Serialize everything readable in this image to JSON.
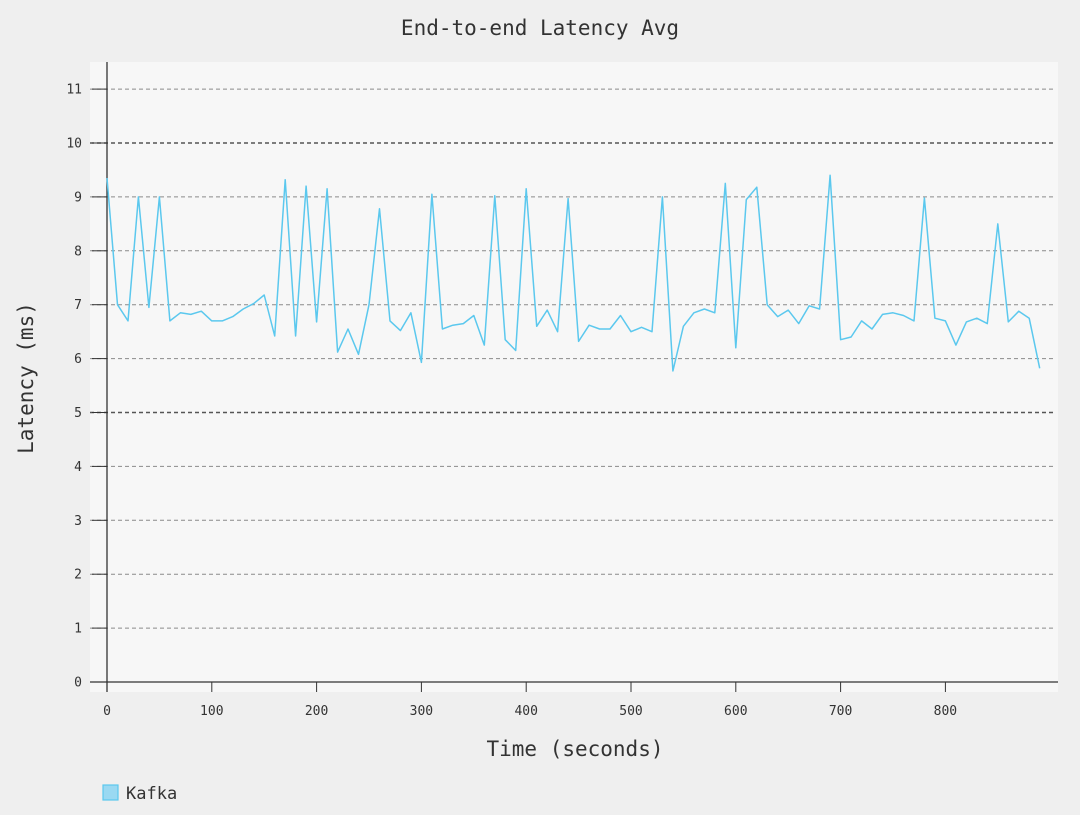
{
  "chart_data": {
    "type": "line",
    "title": "End-to-end Latency Avg",
    "xlabel": "Time (seconds)",
    "ylabel": "Latency (ms)",
    "xlim": [
      0,
      910
    ],
    "ylim": [
      0,
      11.5
    ],
    "x_ticks": [
      0,
      100,
      200,
      300,
      400,
      500,
      600,
      700,
      800
    ],
    "y_ticks": [
      0,
      1,
      2,
      3,
      4,
      5,
      6,
      7,
      8,
      9,
      10,
      11
    ],
    "grid": true,
    "legend_position": "bottom-left",
    "series": [
      {
        "name": "Kafka",
        "color": "#5bc8ee",
        "x": [
          0,
          10,
          20,
          30,
          40,
          50,
          60,
          70,
          80,
          90,
          100,
          110,
          120,
          130,
          140,
          150,
          160,
          170,
          180,
          190,
          200,
          210,
          220,
          230,
          240,
          250,
          260,
          270,
          280,
          290,
          300,
          310,
          320,
          330,
          340,
          350,
          360,
          370,
          380,
          390,
          400,
          410,
          420,
          430,
          440,
          450,
          460,
          470,
          480,
          490,
          500,
          510,
          520,
          530,
          540,
          550,
          560,
          570,
          580,
          590,
          600,
          610,
          620,
          630,
          640,
          650,
          660,
          670,
          680,
          690,
          700,
          710,
          720,
          730,
          740,
          750,
          760,
          770,
          780,
          790,
          800,
          810,
          820,
          830,
          840,
          850,
          860,
          870,
          880,
          890
        ],
        "y": [
          9.35,
          7.0,
          6.7,
          9.0,
          6.95,
          9.0,
          6.7,
          6.85,
          6.82,
          6.88,
          6.7,
          6.7,
          6.78,
          6.92,
          7.02,
          7.18,
          6.42,
          9.32,
          6.42,
          9.2,
          6.68,
          9.15,
          6.12,
          6.55,
          6.08,
          7.0,
          8.78,
          6.7,
          6.52,
          6.85,
          5.93,
          9.05,
          6.55,
          6.62,
          6.65,
          6.8,
          6.25,
          9.02,
          6.35,
          6.15,
          9.15,
          6.6,
          6.9,
          6.5,
          8.97,
          6.32,
          6.62,
          6.55,
          6.55,
          6.8,
          6.5,
          6.58,
          6.5,
          9.0,
          5.77,
          6.6,
          6.85,
          6.92,
          6.85,
          9.25,
          6.2,
          8.95,
          9.18,
          7.0,
          6.78,
          6.9,
          6.65,
          6.98,
          6.92,
          9.4,
          6.35,
          6.4,
          6.7,
          6.55,
          6.82,
          6.85,
          6.8,
          6.7,
          8.98,
          6.75,
          6.7,
          6.25,
          6.68,
          6.75,
          6.65,
          8.5,
          6.68,
          6.88,
          6.75,
          5.82
        ]
      }
    ]
  }
}
